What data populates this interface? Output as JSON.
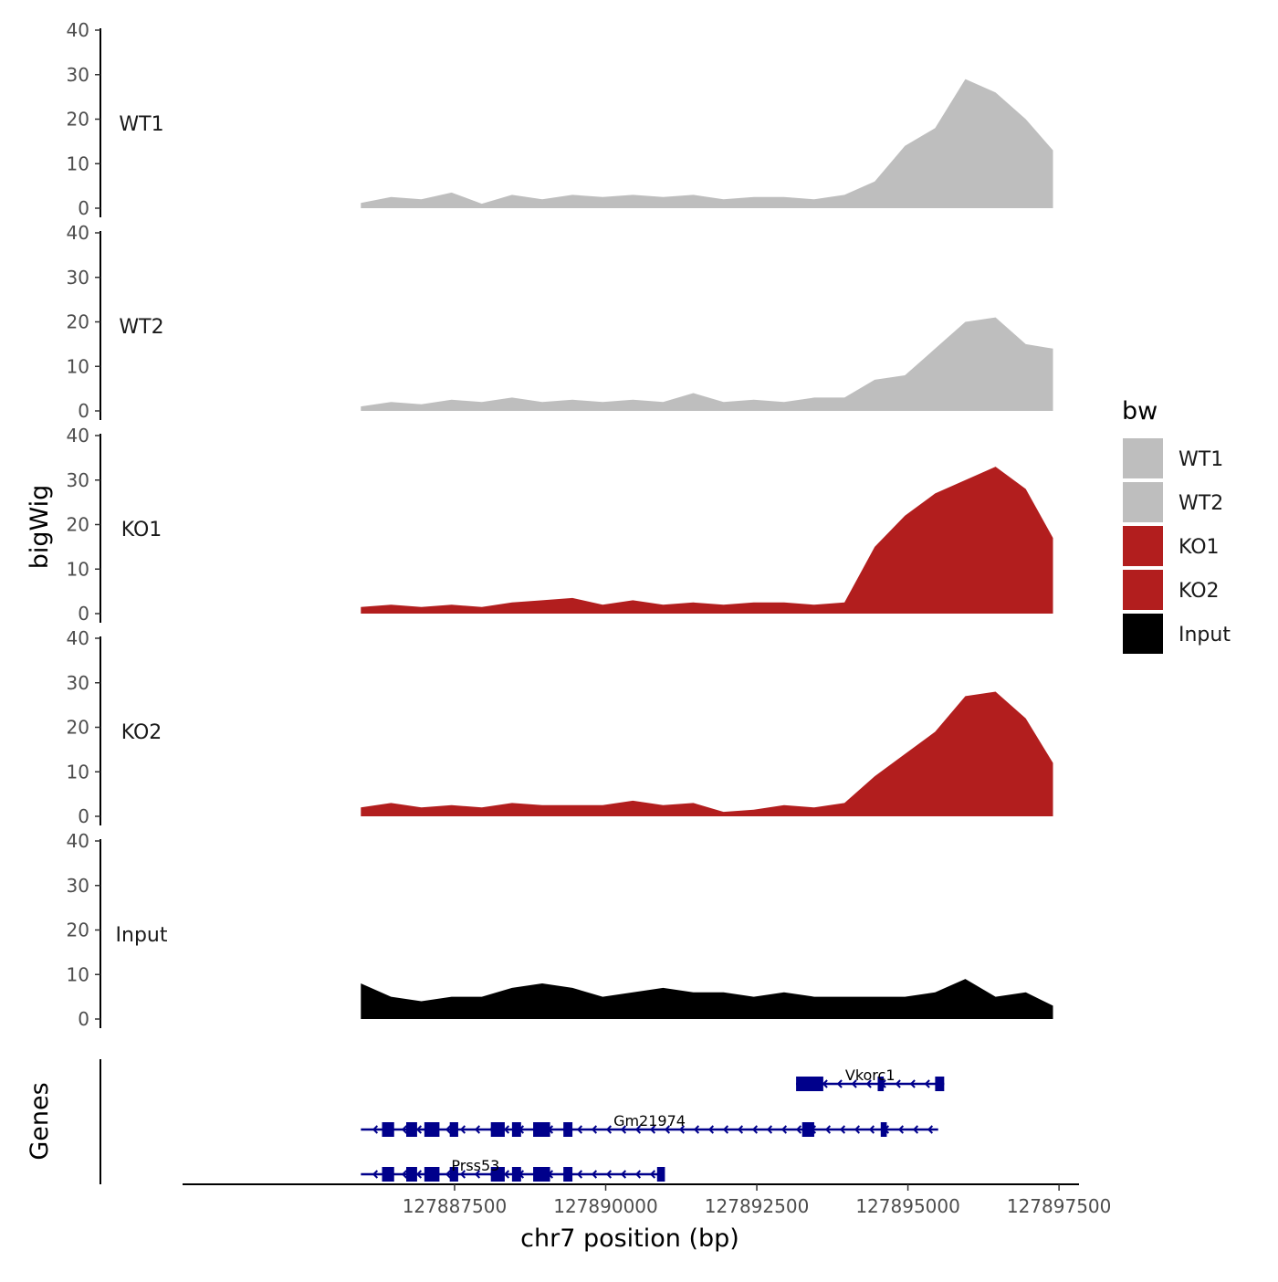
{
  "chart_data": {
    "type": "area",
    "title": "",
    "ylabel": "bigWig",
    "xlabel": "chr7 position (bp)",
    "genes_label": "Genes",
    "xlim": [
      127883000,
      127897800
    ],
    "ylim": [
      0,
      40
    ],
    "yticks": [
      "0",
      "10",
      "20",
      "30",
      "40"
    ],
    "xticks": [
      {
        "value": 127887500,
        "label": "127887500"
      },
      {
        "value": 127890000,
        "label": "127890000"
      },
      {
        "value": 127892500,
        "label": "127892500"
      },
      {
        "value": 127895000,
        "label": "127895000"
      },
      {
        "value": 127897500,
        "label": "127897500"
      }
    ],
    "x": [
      127885950,
      127886450,
      127886950,
      127887450,
      127887950,
      127888450,
      127888950,
      127889450,
      127889950,
      127890450,
      127890950,
      127891450,
      127891950,
      127892450,
      127892950,
      127893450,
      127893950,
      127894450,
      127894950,
      127895450,
      127895950,
      127896450,
      127896950,
      127897400
    ],
    "series": [
      {
        "name": "WT1",
        "color": "#bebebe",
        "values": [
          1.2,
          2.5,
          2.0,
          3.5,
          1.0,
          3.0,
          2.0,
          3.0,
          2.5,
          3.0,
          2.5,
          3.0,
          2.0,
          2.5,
          2.5,
          2.0,
          3.0,
          6.0,
          14.0,
          18.0,
          29.0,
          26.0,
          20.0,
          13.0
        ]
      },
      {
        "name": "WT2",
        "color": "#bebebe",
        "values": [
          1.0,
          2.0,
          1.5,
          2.5,
          2.0,
          3.0,
          2.0,
          2.5,
          2.0,
          2.5,
          2.0,
          4.0,
          2.0,
          2.5,
          2.0,
          3.0,
          3.0,
          7.0,
          8.0,
          14.0,
          20.0,
          21.0,
          15.0,
          14.0
        ]
      },
      {
        "name": "KO1",
        "color": "#b21e1e",
        "values": [
          1.5,
          2.0,
          1.5,
          2.0,
          1.5,
          2.5,
          3.0,
          3.5,
          2.0,
          3.0,
          2.0,
          2.5,
          2.0,
          2.5,
          2.5,
          2.0,
          2.5,
          15.0,
          22.0,
          27.0,
          30.0,
          33.0,
          28.0,
          17.0
        ]
      },
      {
        "name": "KO2",
        "color": "#b21e1e",
        "values": [
          2.0,
          3.0,
          2.0,
          2.5,
          2.0,
          3.0,
          2.5,
          2.5,
          2.5,
          3.5,
          2.5,
          3.0,
          1.0,
          1.5,
          2.5,
          2.0,
          3.0,
          9.0,
          14.0,
          19.0,
          27.0,
          28.0,
          22.0,
          12.0
        ]
      },
      {
        "name": "Input",
        "color": "#000000",
        "values": [
          8.0,
          5.0,
          4.0,
          5.0,
          5.0,
          7.0,
          8.0,
          7.0,
          5.0,
          6.0,
          7.0,
          6.0,
          6.0,
          5.0,
          6.0,
          5.0,
          5.0,
          5.0,
          5.0,
          6.0,
          9.0,
          5.0,
          6.0,
          3.0
        ]
      }
    ],
    "genes": [
      {
        "name": "Vkorc1",
        "start": 127893150,
        "end": 127895600,
        "row": 1,
        "exons": [
          [
            127893150,
            127893600
          ],
          [
            127894500,
            127894600
          ],
          [
            127895450,
            127895600
          ]
        ]
      },
      {
        "name": "Gm21974",
        "start": 127885950,
        "end": 127895500,
        "row": 2,
        "exons": [
          [
            127886300,
            127886500
          ],
          [
            127886700,
            127886880
          ],
          [
            127887000,
            127887250
          ],
          [
            127887420,
            127887560
          ],
          [
            127888100,
            127888330
          ],
          [
            127888450,
            127888600
          ],
          [
            127888800,
            127889080
          ],
          [
            127889300,
            127889450
          ],
          [
            127893250,
            127893450
          ],
          [
            127894550,
            127894650
          ]
        ]
      },
      {
        "name": "Prss53",
        "start": 127885950,
        "end": 127890950,
        "row": 3,
        "exons": [
          [
            127886300,
            127886500
          ],
          [
            127886700,
            127886880
          ],
          [
            127887000,
            127887250
          ],
          [
            127887420,
            127887560
          ],
          [
            127888100,
            127888330
          ],
          [
            127888450,
            127888600
          ],
          [
            127888800,
            127889080
          ],
          [
            127889300,
            127889450
          ],
          [
            127890850,
            127890980
          ]
        ]
      }
    ],
    "legend": {
      "title": "bw",
      "position": "right"
    }
  }
}
